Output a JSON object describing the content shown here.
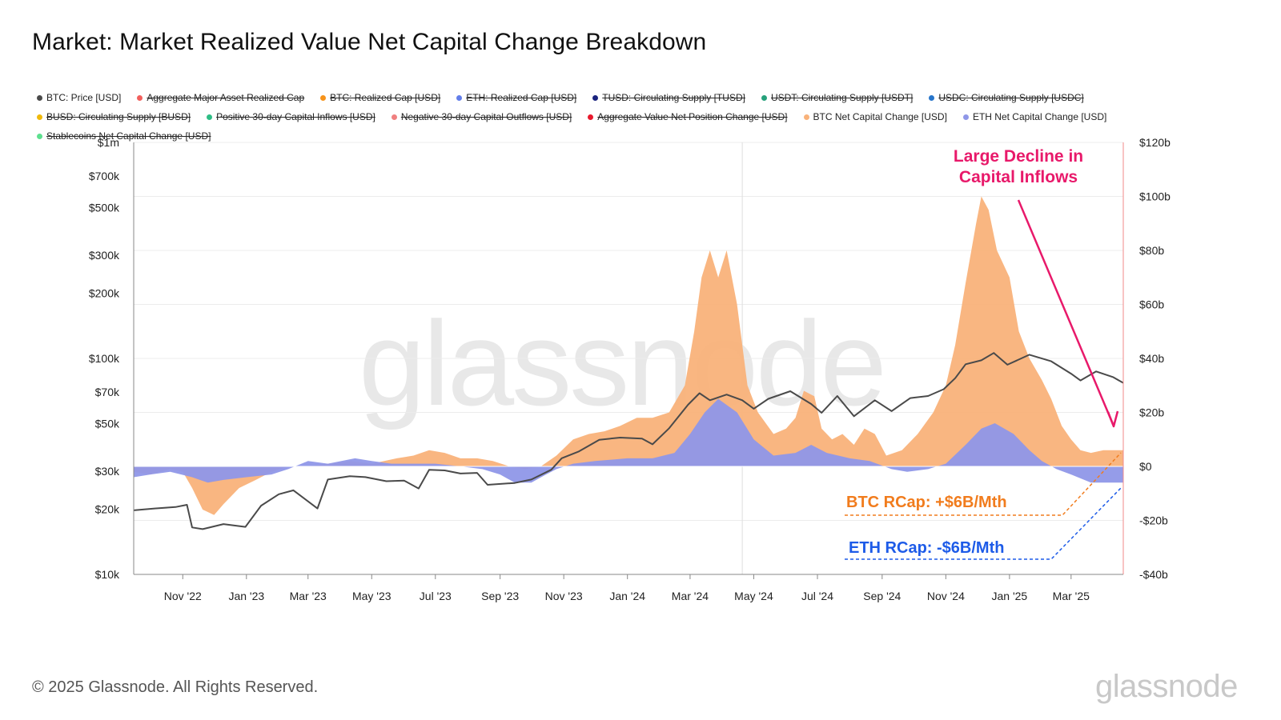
{
  "title": "Market: Market Realized Value Net Capital Change Breakdown",
  "footer": "© 2025 Glassnode. All Rights Reserved.",
  "brand": "glassnode",
  "watermark": "glassnode",
  "legend": [
    [
      {
        "label": "BTC: Price [USD]",
        "color": "#4a4a4a",
        "active": true
      },
      {
        "label": "Aggregate Major Asset Realized Cap",
        "color": "#f25f5c",
        "active": false
      },
      {
        "label": "BTC: Realized Cap [USD]",
        "color": "#f7931a",
        "active": false
      },
      {
        "label": "ETH: Realized Cap [USD]",
        "color": "#627eea",
        "active": false
      },
      {
        "label": "TUSD: Circulating Supply [TUSD]",
        "color": "#1a237e",
        "active": false
      },
      {
        "label": "USDT: Circulating Supply [USDT]",
        "color": "#26a17b",
        "active": false
      },
      {
        "label": "USDC: Circulating Supply [USDC]",
        "color": "#2775ca",
        "active": false
      }
    ],
    [
      {
        "label": "BUSD: Circulating Supply [BUSD]",
        "color": "#f0b90b",
        "active": false
      },
      {
        "label": "Positive 30-day Capital Inflows [USD]",
        "color": "#2ebd85",
        "active": false
      },
      {
        "label": "Negative 30-day Capital Outflows [USD]",
        "color": "#f08080",
        "active": false
      },
      {
        "label": "Aggregate Value Net Position Change [USD]",
        "color": "#e8192c",
        "active": false
      },
      {
        "label": "BTC Net Capital Change [USD]",
        "color": "#f9b27a",
        "active": true
      },
      {
        "label": "ETH Net Capital Change [USD]",
        "color": "#8f97e8",
        "active": true
      }
    ],
    [
      {
        "label": "Stablecoins Net Capital Change [USD]",
        "color": "#5ee08f",
        "active": false
      }
    ]
  ],
  "chart_data": {
    "type": "area",
    "x_tick_labels": [
      "Nov '22",
      "Jan '23",
      "Mar '23",
      "May '23",
      "Jul '23",
      "Sep '23",
      "Nov '23",
      "Jan '24",
      "Mar '24",
      "May '24",
      "Jul '24",
      "Sep '24",
      "Nov '24",
      "Jan '25",
      "Mar '25"
    ],
    "x_range": [
      "2022-09-15",
      "2025-04-20"
    ],
    "y_left": {
      "scale": "log",
      "range": [
        10000,
        1000000
      ],
      "ticks": [
        10000,
        20000,
        30000,
        50000,
        70000,
        100000,
        200000,
        300000,
        500000,
        700000,
        1000000
      ],
      "tick_labels": [
        "$10k",
        "$20k",
        "$30k",
        "$50k",
        "$70k",
        "$100k",
        "$200k",
        "$300k",
        "$500k",
        "$700k",
        "$1m"
      ]
    },
    "y_right": {
      "scale": "linear",
      "range": [
        -40,
        120
      ],
      "unit": "billion USD",
      "ticks": [
        -40,
        -20,
        0,
        20,
        40,
        60,
        80,
        100,
        120
      ],
      "tick_labels": [
        "-$40b",
        "-$20b",
        "$0",
        "$20b",
        "$40b",
        "$60b",
        "$80b",
        "$100b",
        "$120b"
      ]
    },
    "grid": true,
    "series": [
      {
        "name": "BTC Net Capital Change [USD]",
        "axis": "right",
        "color": "#f9b27a",
        "points": [
          [
            "2022-09-15",
            -2
          ],
          [
            "2022-10-01",
            -3
          ],
          [
            "2022-10-20",
            -1
          ],
          [
            "2022-11-01",
            -2
          ],
          [
            "2022-11-10",
            -8
          ],
          [
            "2022-11-20",
            -16
          ],
          [
            "2022-12-01",
            -18
          ],
          [
            "2022-12-10",
            -14
          ],
          [
            "2022-12-25",
            -8
          ],
          [
            "2023-01-10",
            -5
          ],
          [
            "2023-01-25",
            -2
          ],
          [
            "2023-02-10",
            0
          ],
          [
            "2023-03-01",
            0
          ],
          [
            "2023-03-20",
            1
          ],
          [
            "2023-04-10",
            2
          ],
          [
            "2023-05-01",
            1
          ],
          [
            "2023-05-25",
            3
          ],
          [
            "2023-06-10",
            4
          ],
          [
            "2023-06-25",
            6
          ],
          [
            "2023-07-10",
            5
          ],
          [
            "2023-07-25",
            3
          ],
          [
            "2023-08-10",
            3
          ],
          [
            "2023-08-25",
            2
          ],
          [
            "2023-09-10",
            0
          ],
          [
            "2023-09-25",
            -1
          ],
          [
            "2023-10-10",
            0
          ],
          [
            "2023-10-25",
            4
          ],
          [
            "2023-11-10",
            10
          ],
          [
            "2023-11-25",
            12
          ],
          [
            "2023-12-10",
            13
          ],
          [
            "2023-12-25",
            15
          ],
          [
            "2024-01-10",
            18
          ],
          [
            "2024-01-25",
            18
          ],
          [
            "2024-02-10",
            20
          ],
          [
            "2024-02-25",
            30
          ],
          [
            "2024-03-05",
            50
          ],
          [
            "2024-03-12",
            70
          ],
          [
            "2024-03-20",
            80
          ],
          [
            "2024-03-28",
            70
          ],
          [
            "2024-04-05",
            80
          ],
          [
            "2024-04-15",
            60
          ],
          [
            "2024-04-25",
            30
          ],
          [
            "2024-05-05",
            20
          ],
          [
            "2024-05-20",
            12
          ],
          [
            "2024-06-01",
            14
          ],
          [
            "2024-06-10",
            18
          ],
          [
            "2024-06-18",
            28
          ],
          [
            "2024-06-28",
            26
          ],
          [
            "2024-07-05",
            14
          ],
          [
            "2024-07-15",
            10
          ],
          [
            "2024-07-25",
            12
          ],
          [
            "2024-08-05",
            8
          ],
          [
            "2024-08-15",
            14
          ],
          [
            "2024-08-25",
            12
          ],
          [
            "2024-09-05",
            4
          ],
          [
            "2024-09-20",
            6
          ],
          [
            "2024-10-05",
            12
          ],
          [
            "2024-10-20",
            20
          ],
          [
            "2024-11-01",
            30
          ],
          [
            "2024-11-10",
            45
          ],
          [
            "2024-11-20",
            68
          ],
          [
            "2024-11-30",
            90
          ],
          [
            "2024-12-05",
            100
          ],
          [
            "2024-12-12",
            95
          ],
          [
            "2024-12-20",
            80
          ],
          [
            "2025-01-01",
            70
          ],
          [
            "2025-01-10",
            50
          ],
          [
            "2025-01-20",
            40
          ],
          [
            "2025-02-01",
            32
          ],
          [
            "2025-02-10",
            25
          ],
          [
            "2025-02-20",
            15
          ],
          [
            "2025-03-01",
            10
          ],
          [
            "2025-03-10",
            6
          ],
          [
            "2025-03-20",
            5
          ],
          [
            "2025-04-01",
            6
          ],
          [
            "2025-04-10",
            6
          ],
          [
            "2025-04-20",
            6
          ]
        ]
      },
      {
        "name": "ETH Net Capital Change [USD]",
        "axis": "right",
        "color": "#8f97e8",
        "points": [
          [
            "2022-09-15",
            -4
          ],
          [
            "2022-10-01",
            -3
          ],
          [
            "2022-10-20",
            -2
          ],
          [
            "2022-11-10",
            -4
          ],
          [
            "2022-11-25",
            -6
          ],
          [
            "2022-12-10",
            -5
          ],
          [
            "2023-01-01",
            -4
          ],
          [
            "2023-01-25",
            -3
          ],
          [
            "2023-02-10",
            -1
          ],
          [
            "2023-03-01",
            2
          ],
          [
            "2023-03-20",
            1
          ],
          [
            "2023-04-15",
            3
          ],
          [
            "2023-05-01",
            2
          ],
          [
            "2023-05-20",
            1
          ],
          [
            "2023-06-10",
            1
          ],
          [
            "2023-07-01",
            1
          ],
          [
            "2023-07-25",
            0
          ],
          [
            "2023-08-15",
            -1
          ],
          [
            "2023-09-01",
            -3
          ],
          [
            "2023-09-15",
            -6
          ],
          [
            "2023-10-01",
            -6
          ],
          [
            "2023-10-15",
            -3
          ],
          [
            "2023-10-25",
            -1
          ],
          [
            "2023-11-10",
            1
          ],
          [
            "2023-12-01",
            2
          ],
          [
            "2024-01-01",
            3
          ],
          [
            "2024-01-25",
            3
          ],
          [
            "2024-02-15",
            5
          ],
          [
            "2024-03-01",
            12
          ],
          [
            "2024-03-15",
            20
          ],
          [
            "2024-03-28",
            25
          ],
          [
            "2024-04-15",
            20
          ],
          [
            "2024-05-01",
            10
          ],
          [
            "2024-05-20",
            4
          ],
          [
            "2024-06-10",
            5
          ],
          [
            "2024-06-25",
            8
          ],
          [
            "2024-07-10",
            5
          ],
          [
            "2024-08-01",
            3
          ],
          [
            "2024-08-20",
            2
          ],
          [
            "2024-09-10",
            -1
          ],
          [
            "2024-09-25",
            -2
          ],
          [
            "2024-10-15",
            -1
          ],
          [
            "2024-11-01",
            1
          ],
          [
            "2024-11-20",
            8
          ],
          [
            "2024-12-05",
            14
          ],
          [
            "2024-12-18",
            16
          ],
          [
            "2025-01-05",
            12
          ],
          [
            "2025-01-20",
            6
          ],
          [
            "2025-02-01",
            2
          ],
          [
            "2025-02-15",
            -1
          ],
          [
            "2025-03-01",
            -3
          ],
          [
            "2025-03-20",
            -6
          ],
          [
            "2025-04-10",
            -6
          ],
          [
            "2025-04-20",
            -6
          ]
        ]
      },
      {
        "name": "BTC: Price [USD]",
        "axis": "left",
        "color": "#4a4a4a",
        "type": "line",
        "points": [
          [
            "2022-09-15",
            19800
          ],
          [
            "2022-10-05",
            20200
          ],
          [
            "2022-10-25",
            20500
          ],
          [
            "2022-11-05",
            21000
          ],
          [
            "2022-11-10",
            16500
          ],
          [
            "2022-11-20",
            16200
          ],
          [
            "2022-12-10",
            17100
          ],
          [
            "2022-12-31",
            16600
          ],
          [
            "2023-01-15",
            20800
          ],
          [
            "2023-02-01",
            23500
          ],
          [
            "2023-02-15",
            24500
          ],
          [
            "2023-03-10",
            20200
          ],
          [
            "2023-03-20",
            27500
          ],
          [
            "2023-04-10",
            28500
          ],
          [
            "2023-04-25",
            28200
          ],
          [
            "2023-05-15",
            27000
          ],
          [
            "2023-06-01",
            27200
          ],
          [
            "2023-06-15",
            25000
          ],
          [
            "2023-06-25",
            30500
          ],
          [
            "2023-07-10",
            30300
          ],
          [
            "2023-07-25",
            29300
          ],
          [
            "2023-08-10",
            29500
          ],
          [
            "2023-08-20",
            26000
          ],
          [
            "2023-09-15",
            26500
          ],
          [
            "2023-10-01",
            27500
          ],
          [
            "2023-10-20",
            30500
          ],
          [
            "2023-10-30",
            34500
          ],
          [
            "2023-11-15",
            37000
          ],
          [
            "2023-12-05",
            42000
          ],
          [
            "2023-12-25",
            43000
          ],
          [
            "2024-01-15",
            42500
          ],
          [
            "2024-01-25",
            40000
          ],
          [
            "2024-02-10",
            47500
          ],
          [
            "2024-02-28",
            61000
          ],
          [
            "2024-03-10",
            69000
          ],
          [
            "2024-03-20",
            64000
          ],
          [
            "2024-04-05",
            68000
          ],
          [
            "2024-04-20",
            64000
          ],
          [
            "2024-05-01",
            58500
          ],
          [
            "2024-05-15",
            65000
          ],
          [
            "2024-06-05",
            70500
          ],
          [
            "2024-06-25",
            61500
          ],
          [
            "2024-07-05",
            56000
          ],
          [
            "2024-07-20",
            67000
          ],
          [
            "2024-08-05",
            54000
          ],
          [
            "2024-08-25",
            64000
          ],
          [
            "2024-09-10",
            57000
          ],
          [
            "2024-09-28",
            65500
          ],
          [
            "2024-10-15",
            67000
          ],
          [
            "2024-10-30",
            72000
          ],
          [
            "2024-11-10",
            81000
          ],
          [
            "2024-11-20",
            94000
          ],
          [
            "2024-12-05",
            98000
          ],
          [
            "2024-12-17",
            106000
          ],
          [
            "2024-12-30",
            93500
          ],
          [
            "2025-01-20",
            104000
          ],
          [
            "2025-02-10",
            97000
          ],
          [
            "2025-03-01",
            85000
          ],
          [
            "2025-03-10",
            79000
          ],
          [
            "2025-03-25",
            87000
          ],
          [
            "2025-04-10",
            82000
          ],
          [
            "2025-04-20",
            77000
          ]
        ]
      }
    ],
    "annotations": [
      {
        "text": "Large Decline in Capital Inflows",
        "color": "#e8196a"
      },
      {
        "text": "BTC RCap: +$6B/Mth",
        "color": "#f17c1d"
      },
      {
        "text": "ETH RCap: -$6B/Mth",
        "color": "#1d5be8"
      }
    ]
  }
}
